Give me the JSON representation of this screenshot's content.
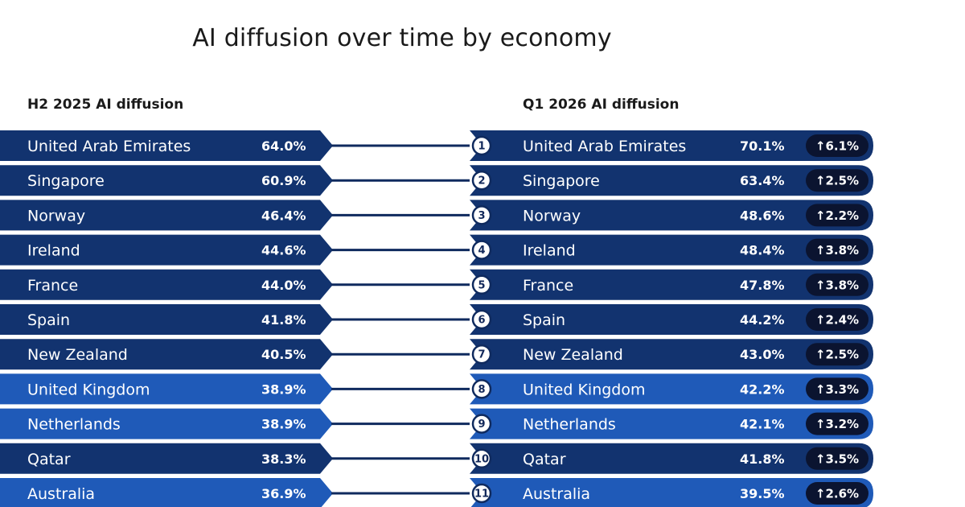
{
  "title": "AI diffusion over time by economy",
  "left_heading": "H2 2025 AI diffusion",
  "right_heading": "Q1 2026 AI diffusion",
  "colors": {
    "bar_dark": "#12336f",
    "bar_light": "#1f5ab8",
    "connector": "#0f2a5e",
    "pill": "#0b1430"
  },
  "chart_data": {
    "type": "table",
    "title": "AI diffusion over time by economy",
    "columns": [
      "H2 2025 AI diffusion",
      "Q1 2026 AI diffusion"
    ],
    "rows": [
      {
        "rank": 1,
        "economy": "United Arab Emirates",
        "h2_2025": "64.0%",
        "q1_2026": "70.1%",
        "change": "↑6.1%",
        "highlight": false
      },
      {
        "rank": 2,
        "economy": "Singapore",
        "h2_2025": "60.9%",
        "q1_2026": "63.4%",
        "change": "↑2.5%",
        "highlight": false
      },
      {
        "rank": 3,
        "economy": "Norway",
        "h2_2025": "46.4%",
        "q1_2026": "48.6%",
        "change": "↑2.2%",
        "highlight": false
      },
      {
        "rank": 4,
        "economy": "Ireland",
        "h2_2025": "44.6%",
        "q1_2026": "48.4%",
        "change": "↑3.8%",
        "highlight": false
      },
      {
        "rank": 5,
        "economy": "France",
        "h2_2025": "44.0%",
        "q1_2026": "47.8%",
        "change": "↑3.8%",
        "highlight": false
      },
      {
        "rank": 6,
        "economy": "Spain",
        "h2_2025": "41.8%",
        "q1_2026": "44.2%",
        "change": "↑2.4%",
        "highlight": false
      },
      {
        "rank": 7,
        "economy": "New Zealand",
        "h2_2025": "40.5%",
        "q1_2026": "43.0%",
        "change": "↑2.5%",
        "highlight": false
      },
      {
        "rank": 8,
        "economy": "United Kingdom",
        "h2_2025": "38.9%",
        "q1_2026": "42.2%",
        "change": "↑3.3%",
        "highlight": true
      },
      {
        "rank": 9,
        "economy": "Netherlands",
        "h2_2025": "38.9%",
        "q1_2026": "42.1%",
        "change": "↑3.2%",
        "highlight": true
      },
      {
        "rank": 10,
        "economy": "Qatar",
        "h2_2025": "38.3%",
        "q1_2026": "41.8%",
        "change": "↑3.5%",
        "highlight": false
      },
      {
        "rank": 11,
        "economy": "Australia",
        "h2_2025": "36.9%",
        "q1_2026": "39.5%",
        "change": "↑2.6%",
        "highlight": true
      }
    ]
  }
}
